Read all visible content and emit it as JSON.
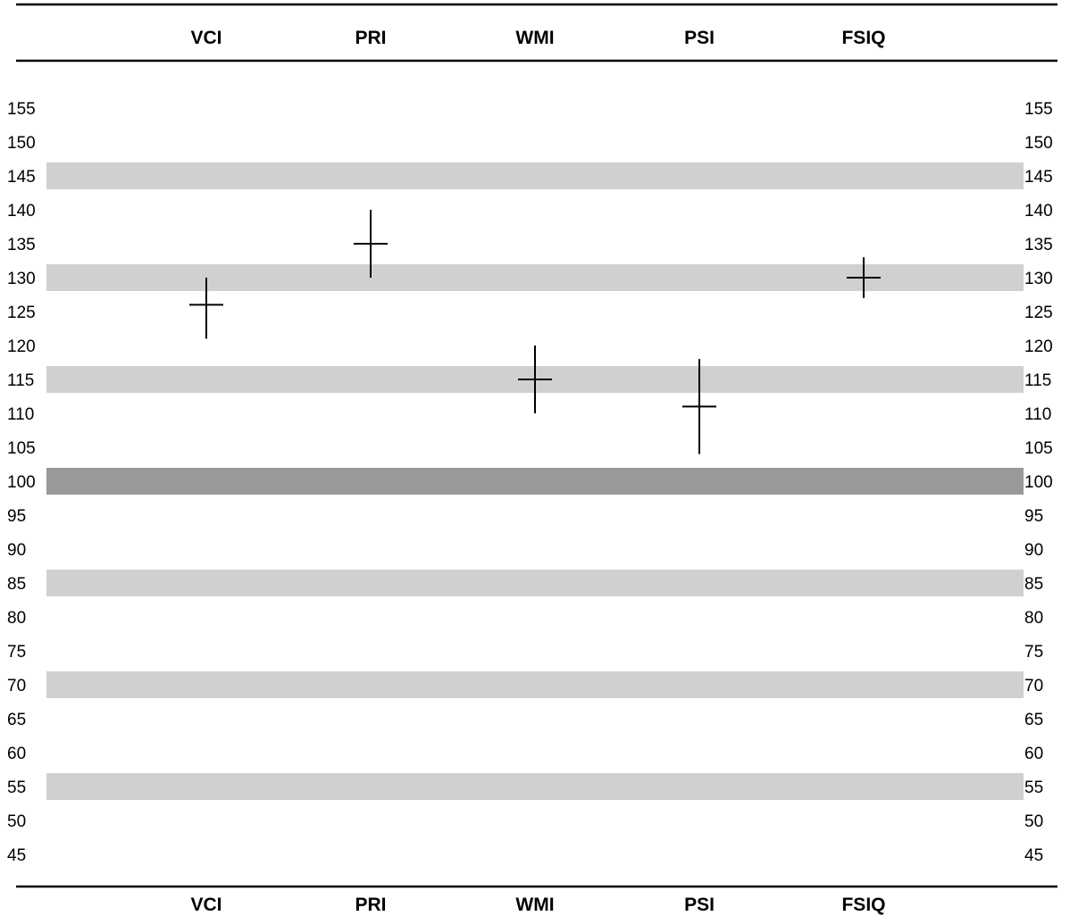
{
  "chart_data": {
    "type": "scatter",
    "title": "",
    "xlabel": "",
    "ylabel": "",
    "categories": [
      "VCI",
      "PRI",
      "WMI",
      "PSI",
      "FSIQ"
    ],
    "y_ticks": [
      155,
      150,
      145,
      140,
      135,
      130,
      125,
      120,
      115,
      110,
      105,
      100,
      95,
      90,
      85,
      80,
      75,
      70,
      65,
      60,
      55,
      50,
      45
    ],
    "ylim": [
      45,
      155
    ],
    "grid": false,
    "legend": "none",
    "series": [
      {
        "points": [
          {
            "category": "VCI",
            "score": 126,
            "ci_low": 121,
            "ci_high": 130
          },
          {
            "category": "PRI",
            "score": 135,
            "ci_low": 130,
            "ci_high": 140
          },
          {
            "category": "WMI",
            "score": 115,
            "ci_low": 110,
            "ci_high": 120
          },
          {
            "category": "PSI",
            "score": 111,
            "ci_low": 104,
            "ci_high": 118
          },
          {
            "category": "FSIQ",
            "score": 130,
            "ci_low": 127,
            "ci_high": 133
          }
        ]
      }
    ],
    "bands": [
      {
        "center": 145,
        "shade": "light"
      },
      {
        "center": 130,
        "shade": "light"
      },
      {
        "center": 115,
        "shade": "light"
      },
      {
        "center": 100,
        "shade": "dark"
      },
      {
        "center": 85,
        "shade": "light"
      },
      {
        "center": 70,
        "shade": "light"
      },
      {
        "center": 55,
        "shade": "light"
      }
    ],
    "colors": {
      "light_band": "#d0d0d0",
      "dark_band": "#999999",
      "marker": "#000000",
      "rule": "#000000"
    }
  }
}
